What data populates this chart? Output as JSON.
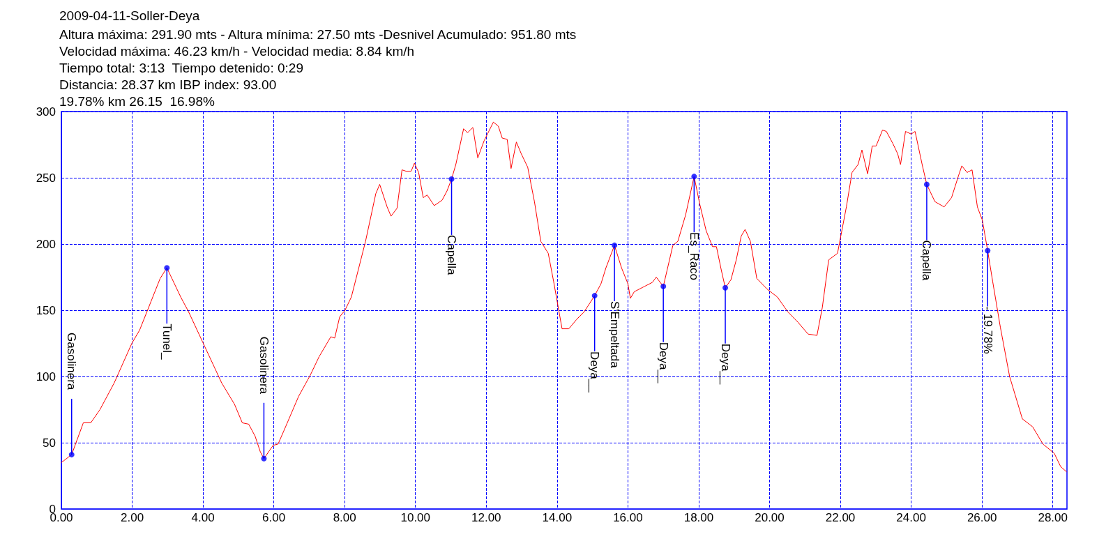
{
  "chart_data": {
    "type": "line",
    "title": "2009-04-11-Soller-Deya",
    "subtitle": "Altura máxima: 291.90 mts - Altura mínima: 27.50 mts -Desnivel Acumulado: 951.80 mts\nVelocidad máxima: 46.23 km/h - Velocidad media: 8.84 km/h\nTiempo total: 3:13  Tiempo detenido: 0:29\nDistancia: 28.37 km IBP index: 93.00\n19.78% km 26.15  16.98%",
    "series": [
      {
        "color": "#ff0000",
        "x": [
          0,
          0.29,
          0.62,
          0.83,
          1.09,
          1.49,
          1.99,
          2.21,
          2.79,
          2.98,
          3.37,
          3.59,
          3.99,
          4.53,
          4.89,
          5.11,
          5.29,
          5.47,
          5.62,
          5.72,
          5.98,
          6.12,
          6.3,
          6.7,
          7.03,
          7.28,
          7.61,
          7.72,
          7.86,
          8.01,
          8.19,
          8.59,
          8.88,
          8.99,
          9.2,
          9.31,
          9.48,
          9.62,
          9.73,
          9.88,
          9.97,
          10.09,
          10.22,
          10.33,
          10.53,
          10.75,
          10.89,
          11.02,
          11.14,
          11.36,
          11.47,
          11.62,
          11.76,
          11.94,
          12.2,
          12.34,
          12.45,
          12.59,
          12.7,
          12.85,
          12.99,
          13.17,
          13.36,
          13.54,
          13.75,
          13.9,
          14.14,
          14.33,
          14.55,
          14.77,
          15.06,
          15.24,
          15.38,
          15.62,
          15.82,
          16,
          16.07,
          16.18,
          16.47,
          16.69,
          16.8,
          17,
          17.27,
          17.41,
          17.63,
          17.87,
          18.03,
          18.21,
          18.39,
          18.5,
          18.64,
          18.75,
          18.91,
          19.06,
          19.2,
          19.31,
          19.46,
          19.64,
          19.93,
          20.22,
          20.51,
          20.8,
          21.09,
          21.34,
          21.49,
          21.67,
          21.92,
          22.17,
          22.33,
          22.5,
          22.61,
          22.77,
          22.9,
          23.01,
          23.19,
          23.3,
          23.48,
          23.62,
          23.7,
          23.84,
          24,
          24.11,
          24.31,
          24.44,
          24.67,
          24.93,
          25.14,
          25.33,
          25.43,
          25.58,
          25.72,
          25.87,
          26.01,
          26.16,
          26.3,
          26.52,
          26.78,
          27.14,
          27.43,
          27.72,
          28.04,
          28.22,
          28.39
        ],
        "values": [
          35,
          41,
          65,
          65,
          75,
          95,
          125,
          135,
          174,
          182,
          160,
          149,
          126,
          95,
          79,
          65,
          64,
          55,
          43,
          38,
          48,
          49,
          60,
          85,
          101,
          115,
          130,
          129,
          145,
          150,
          160,
          202,
          238,
          245,
          228,
          221,
          227,
          256,
          255,
          255,
          261,
          254,
          235,
          237,
          229,
          233,
          240,
          249,
          260,
          287,
          284,
          288,
          265,
          278,
          292,
          289,
          280,
          279,
          257,
          277,
          268,
          258,
          232,
          202,
          193,
          172,
          136,
          136,
          143,
          149,
          161,
          170,
          182,
          199,
          182,
          170,
          159,
          164,
          168,
          171,
          175,
          168,
          199,
          202,
          222,
          251,
          230,
          210,
          198,
          198,
          180,
          167,
          173,
          188,
          206,
          211,
          202,
          174,
          166,
          160,
          149,
          141,
          132,
          131,
          152,
          188,
          193,
          228,
          254,
          260,
          271,
          253,
          274,
          274,
          286,
          285,
          276,
          268,
          260,
          285,
          283,
          285,
          260,
          245,
          232,
          228,
          235,
          251,
          259,
          254,
          256,
          228,
          218,
          195,
          172,
          137,
          100,
          68,
          62,
          49,
          42,
          32,
          28
        ]
      },
      {
        "type": "scatter",
        "color": "#0000ff",
        "marker": "circle",
        "x": [
          0.29,
          2.98,
          5.72,
          11.02,
          15.06,
          15.62,
          17,
          17.87,
          18.75,
          24.44,
          26.16
        ],
        "values": [
          41,
          182,
          38,
          249,
          161,
          199,
          168,
          251,
          167,
          245,
          195
        ]
      }
    ],
    "annotations": [
      {
        "text": "Gasolinera",
        "x": 0.29,
        "y": 41
      },
      {
        "text": "Tunel_",
        "x": 2.98,
        "y": 182
      },
      {
        "text": "Gasolinera",
        "x": 5.72,
        "y": 38
      },
      {
        "text": "Capella",
        "x": 11.02,
        "y": 249
      },
      {
        "text": "Deya__",
        "x": 15.06,
        "y": 161
      },
      {
        "text": "S'Empeltada",
        "x": 15.62,
        "y": 199
      },
      {
        "text": "Deya__",
        "x": 17,
        "y": 168
      },
      {
        "text": "Es_Raco",
        "x": 17.87,
        "y": 251
      },
      {
        "text": "Deya__",
        "x": 18.75,
        "y": 167
      },
      {
        "text": "Capella",
        "x": 24.44,
        "y": 245
      },
      {
        "text": "- 19.78%",
        "x": 26.16,
        "y": 195
      }
    ],
    "xlim": [
      0,
      28.4
    ],
    "xticks": [
      {
        "value": 0,
        "label": "0.00"
      },
      {
        "value": 2,
        "label": "2.00"
      },
      {
        "value": 4,
        "label": "4.00"
      },
      {
        "value": 6,
        "label": "6.00"
      },
      {
        "value": 8,
        "label": "8.00"
      },
      {
        "value": 10,
        "label": "10.00"
      },
      {
        "value": 12,
        "label": "12.00"
      },
      {
        "value": 14,
        "label": "14.00"
      },
      {
        "value": 16,
        "label": "16.00"
      },
      {
        "value": 18,
        "label": "18.00"
      },
      {
        "value": 20,
        "label": "20.00"
      },
      {
        "value": 22,
        "label": "22.00"
      },
      {
        "value": 24,
        "label": "24.00"
      },
      {
        "value": 26,
        "label": "26.00"
      },
      {
        "value": 28,
        "label": "28.00"
      }
    ],
    "ylim": [
      0,
      300
    ],
    "yticks": [
      0,
      50,
      100,
      150,
      200,
      250,
      300
    ],
    "grid": true,
    "line_style": "solid"
  }
}
